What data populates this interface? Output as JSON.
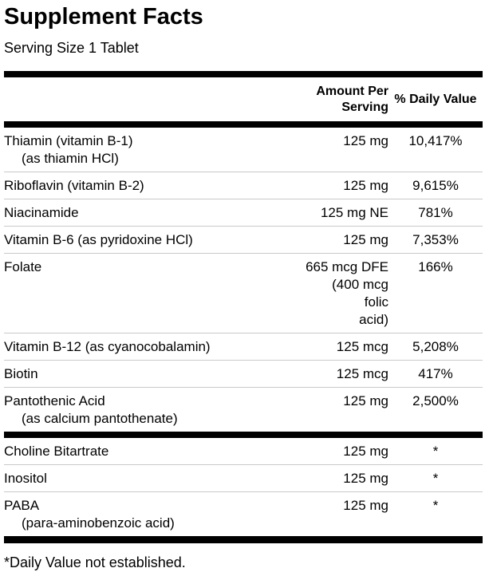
{
  "title": "Supplement Facts",
  "serving_size": "Serving Size 1 Tablet",
  "columns": {
    "amount": "Amount Per Serving",
    "daily_value": "% Daily Value"
  },
  "rows": [
    {
      "name": "Thiamin (vitamin B-1)",
      "sub": "(as thiamin HCl)",
      "amount": "125 mg",
      "dv": "10,417%"
    },
    {
      "name": "Riboflavin (vitamin B-2)",
      "amount": "125 mg",
      "dv": "9,615%"
    },
    {
      "name": "Niacinamide",
      "amount": "125 mg NE",
      "dv": "781%"
    },
    {
      "name": "Vitamin B-6 (as pyridoxine HCl)",
      "amount": "125 mg",
      "dv": "7,353%"
    },
    {
      "name": "Folate",
      "amount": "665 mcg DFE\n(400 mcg folic\nacid)",
      "dv": "166%"
    },
    {
      "name": "Vitamin B-12 (as cyanocobalamin)",
      "amount": "125 mcg",
      "dv": "5,208%"
    },
    {
      "name": "Biotin",
      "amount": "125 mcg",
      "dv": "417%"
    },
    {
      "name": "Pantothenic Acid",
      "sub": "(as calcium pantothenate)",
      "amount": "125 mg",
      "dv": "2,500%"
    },
    {
      "name": "Choline Bitartrate",
      "amount": "125 mg",
      "dv": "*"
    },
    {
      "name": "Inositol",
      "amount": "125 mg",
      "dv": "*"
    },
    {
      "name": "PABA",
      "sub": "(para-aminobenzoic acid)",
      "amount": "125 mg",
      "dv": "*"
    }
  ],
  "footnote": "*Daily Value not established.",
  "colors": {
    "background": "#ffffff",
    "text": "#000000",
    "thick_bar": "#000000",
    "separator": "#c9c9c9"
  }
}
